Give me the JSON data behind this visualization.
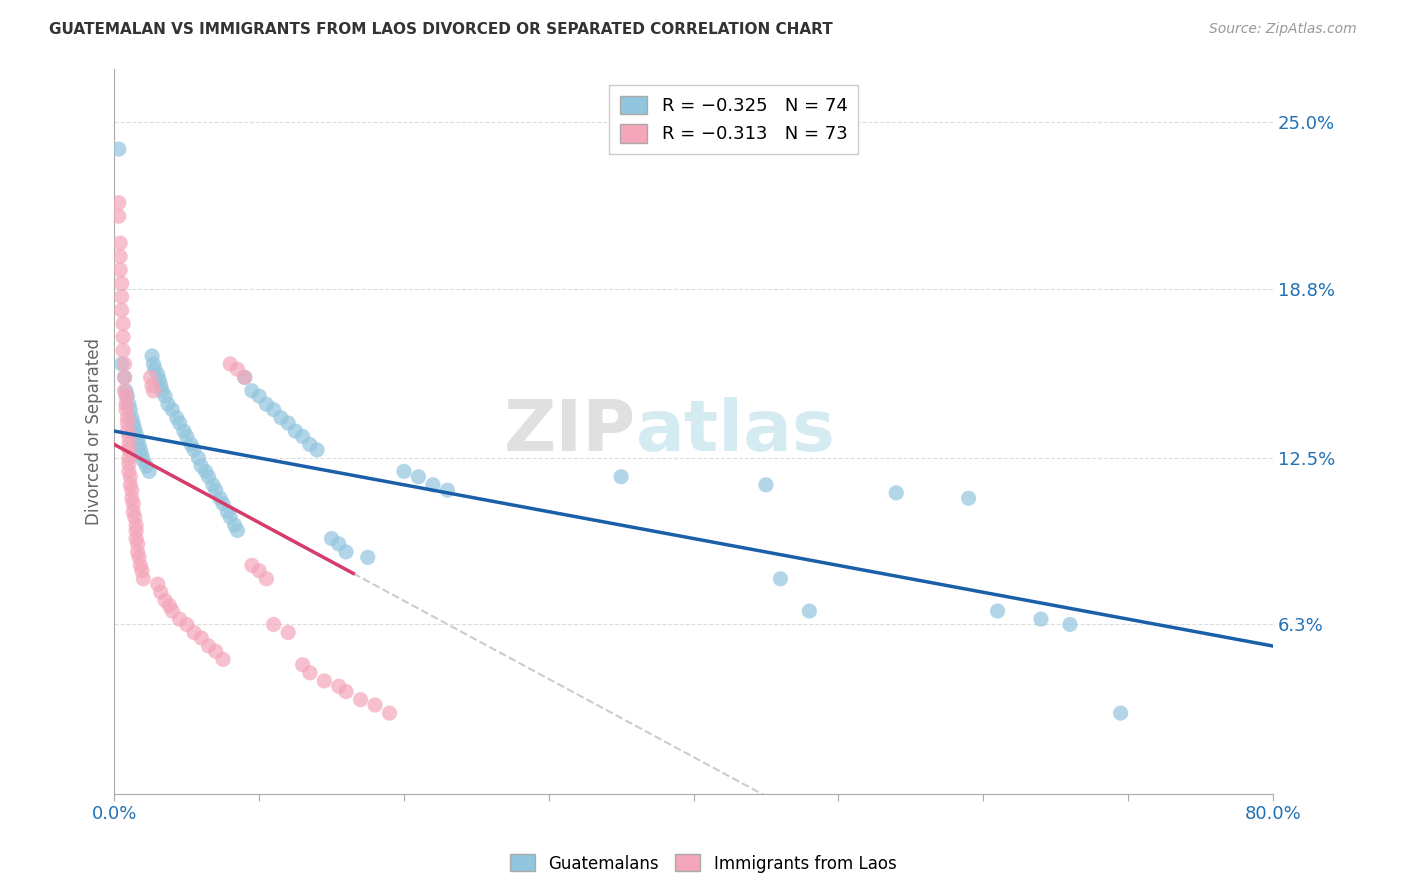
{
  "title": "GUATEMALAN VS IMMIGRANTS FROM LAOS DIVORCED OR SEPARATED CORRELATION CHART",
  "source": "Source: ZipAtlas.com",
  "ylabel": "Divorced or Separated",
  "right_yticks": [
    "6.3%",
    "12.5%",
    "18.8%",
    "25.0%"
  ],
  "right_ytick_vals": [
    0.063,
    0.125,
    0.188,
    0.25
  ],
  "legend_blue_r": "R = −0.325",
  "legend_blue_n": "N = 74",
  "legend_pink_r": "R = −0.313",
  "legend_pink_n": "N = 73",
  "blue_color": "#92c5de",
  "pink_color": "#f4a6ba",
  "trend_blue_color": "#1a5fa8",
  "trend_pink_color": "#d63b6a",
  "trend_dashed_color": "#cccccc",
  "blue_scatter": [
    [
      0.003,
      0.24
    ],
    [
      0.005,
      0.16
    ],
    [
      0.007,
      0.155
    ],
    [
      0.008,
      0.15
    ],
    [
      0.009,
      0.148
    ],
    [
      0.01,
      0.145
    ],
    [
      0.011,
      0.143
    ],
    [
      0.012,
      0.14
    ],
    [
      0.013,
      0.138
    ],
    [
      0.014,
      0.136
    ],
    [
      0.015,
      0.134
    ],
    [
      0.016,
      0.132
    ],
    [
      0.017,
      0.13
    ],
    [
      0.018,
      0.128
    ],
    [
      0.019,
      0.126
    ],
    [
      0.02,
      0.124
    ],
    [
      0.022,
      0.122
    ],
    [
      0.024,
      0.12
    ],
    [
      0.026,
      0.163
    ],
    [
      0.027,
      0.16
    ],
    [
      0.028,
      0.158
    ],
    [
      0.03,
      0.156
    ],
    [
      0.031,
      0.154
    ],
    [
      0.032,
      0.152
    ],
    [
      0.033,
      0.15
    ],
    [
      0.035,
      0.148
    ],
    [
      0.037,
      0.145
    ],
    [
      0.04,
      0.143
    ],
    [
      0.043,
      0.14
    ],
    [
      0.045,
      0.138
    ],
    [
      0.048,
      0.135
    ],
    [
      0.05,
      0.133
    ],
    [
      0.053,
      0.13
    ],
    [
      0.055,
      0.128
    ],
    [
      0.058,
      0.125
    ],
    [
      0.06,
      0.122
    ],
    [
      0.063,
      0.12
    ],
    [
      0.065,
      0.118
    ],
    [
      0.068,
      0.115
    ],
    [
      0.07,
      0.113
    ],
    [
      0.073,
      0.11
    ],
    [
      0.075,
      0.108
    ],
    [
      0.078,
      0.105
    ],
    [
      0.08,
      0.103
    ],
    [
      0.083,
      0.1
    ],
    [
      0.085,
      0.098
    ],
    [
      0.09,
      0.155
    ],
    [
      0.095,
      0.15
    ],
    [
      0.1,
      0.148
    ],
    [
      0.105,
      0.145
    ],
    [
      0.11,
      0.143
    ],
    [
      0.115,
      0.14
    ],
    [
      0.12,
      0.138
    ],
    [
      0.125,
      0.135
    ],
    [
      0.13,
      0.133
    ],
    [
      0.135,
      0.13
    ],
    [
      0.14,
      0.128
    ],
    [
      0.15,
      0.095
    ],
    [
      0.155,
      0.093
    ],
    [
      0.16,
      0.09
    ],
    [
      0.175,
      0.088
    ],
    [
      0.2,
      0.12
    ],
    [
      0.21,
      0.118
    ],
    [
      0.22,
      0.115
    ],
    [
      0.23,
      0.113
    ],
    [
      0.35,
      0.118
    ],
    [
      0.45,
      0.115
    ],
    [
      0.46,
      0.08
    ],
    [
      0.48,
      0.068
    ],
    [
      0.54,
      0.112
    ],
    [
      0.59,
      0.11
    ],
    [
      0.61,
      0.068
    ],
    [
      0.64,
      0.065
    ],
    [
      0.66,
      0.063
    ],
    [
      0.695,
      0.03
    ]
  ],
  "pink_scatter": [
    [
      0.003,
      0.22
    ],
    [
      0.003,
      0.215
    ],
    [
      0.004,
      0.205
    ],
    [
      0.004,
      0.2
    ],
    [
      0.004,
      0.195
    ],
    [
      0.005,
      0.19
    ],
    [
      0.005,
      0.185
    ],
    [
      0.005,
      0.18
    ],
    [
      0.006,
      0.175
    ],
    [
      0.006,
      0.17
    ],
    [
      0.006,
      0.165
    ],
    [
      0.007,
      0.16
    ],
    [
      0.007,
      0.155
    ],
    [
      0.007,
      0.15
    ],
    [
      0.008,
      0.148
    ],
    [
      0.008,
      0.145
    ],
    [
      0.008,
      0.143
    ],
    [
      0.009,
      0.14
    ],
    [
      0.009,
      0.138
    ],
    [
      0.009,
      0.135
    ],
    [
      0.01,
      0.133
    ],
    [
      0.01,
      0.13
    ],
    [
      0.01,
      0.128
    ],
    [
      0.01,
      0.125
    ],
    [
      0.01,
      0.123
    ],
    [
      0.01,
      0.12
    ],
    [
      0.011,
      0.118
    ],
    [
      0.011,
      0.115
    ],
    [
      0.012,
      0.113
    ],
    [
      0.012,
      0.11
    ],
    [
      0.013,
      0.108
    ],
    [
      0.013,
      0.105
    ],
    [
      0.014,
      0.103
    ],
    [
      0.015,
      0.1
    ],
    [
      0.015,
      0.098
    ],
    [
      0.015,
      0.095
    ],
    [
      0.016,
      0.093
    ],
    [
      0.016,
      0.09
    ],
    [
      0.017,
      0.088
    ],
    [
      0.018,
      0.085
    ],
    [
      0.019,
      0.083
    ],
    [
      0.02,
      0.08
    ],
    [
      0.025,
      0.155
    ],
    [
      0.026,
      0.152
    ],
    [
      0.027,
      0.15
    ],
    [
      0.03,
      0.078
    ],
    [
      0.032,
      0.075
    ],
    [
      0.035,
      0.072
    ],
    [
      0.038,
      0.07
    ],
    [
      0.04,
      0.068
    ],
    [
      0.045,
      0.065
    ],
    [
      0.05,
      0.063
    ],
    [
      0.055,
      0.06
    ],
    [
      0.06,
      0.058
    ],
    [
      0.065,
      0.055
    ],
    [
      0.07,
      0.053
    ],
    [
      0.075,
      0.05
    ],
    [
      0.08,
      0.16
    ],
    [
      0.085,
      0.158
    ],
    [
      0.09,
      0.155
    ],
    [
      0.095,
      0.085
    ],
    [
      0.1,
      0.083
    ],
    [
      0.105,
      0.08
    ],
    [
      0.11,
      0.063
    ],
    [
      0.12,
      0.06
    ],
    [
      0.13,
      0.048
    ],
    [
      0.135,
      0.045
    ],
    [
      0.145,
      0.042
    ],
    [
      0.155,
      0.04
    ],
    [
      0.16,
      0.038
    ],
    [
      0.17,
      0.035
    ],
    [
      0.18,
      0.033
    ],
    [
      0.19,
      0.03
    ]
  ],
  "xlim": [
    0.0,
    0.8
  ],
  "ylim": [
    0.0,
    0.27
  ],
  "watermark_zip": "ZIP",
  "watermark_atlas": "atlas"
}
